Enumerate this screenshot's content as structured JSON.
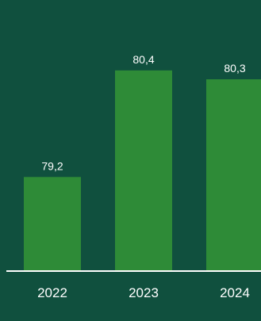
{
  "colors": {
    "background": "#10503e",
    "bar": "#2e8b37",
    "text": "#ffffff",
    "axis": "#ffffff"
  },
  "chart_data": {
    "type": "bar",
    "categories": [
      "2022",
      "2023",
      "2024"
    ],
    "values": [
      79.2,
      80.4,
      80.3
    ],
    "value_labels": [
      "79,2",
      "80,4",
      "80,3"
    ],
    "title": "",
    "xlabel": "",
    "ylabel": "",
    "ylim": [
      78.15,
      80.8
    ],
    "grid": false,
    "legend": "none"
  }
}
